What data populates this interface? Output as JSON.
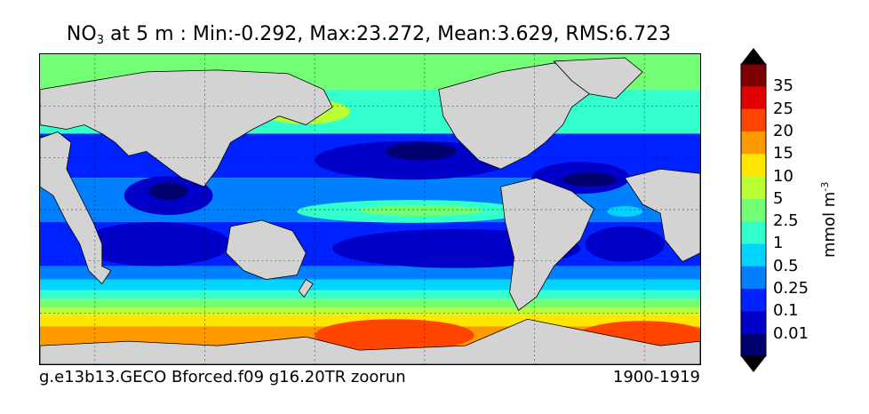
{
  "title": {
    "prefix": "NO",
    "subscript": "3",
    "rest": " at 5 m : Min:-0.292, Max:23.272, Mean:3.629, RMS:6.723"
  },
  "caption_left": "g.e13b13.GECO Bforced.f09 g16.20TR zoorun",
  "caption_right": "1900-1919",
  "colorbar": {
    "unit_text": "mmol m",
    "unit_exponent": "-3",
    "ticks": [
      "35",
      "25",
      "20",
      "15",
      "10",
      "5",
      "2.5",
      "1",
      "0.5",
      "0.25",
      "0.1",
      "0.01"
    ],
    "colors_top_to_bottom": [
      "#7f0000",
      "#e00000",
      "#ff4500",
      "#ff9900",
      "#ffe600",
      "#b9ff33",
      "#73ff73",
      "#33ffcc",
      "#00d4ff",
      "#0080ff",
      "#0022ff",
      "#0000c8",
      "#00006e"
    ],
    "land_color": "#d3d3d3"
  }
}
